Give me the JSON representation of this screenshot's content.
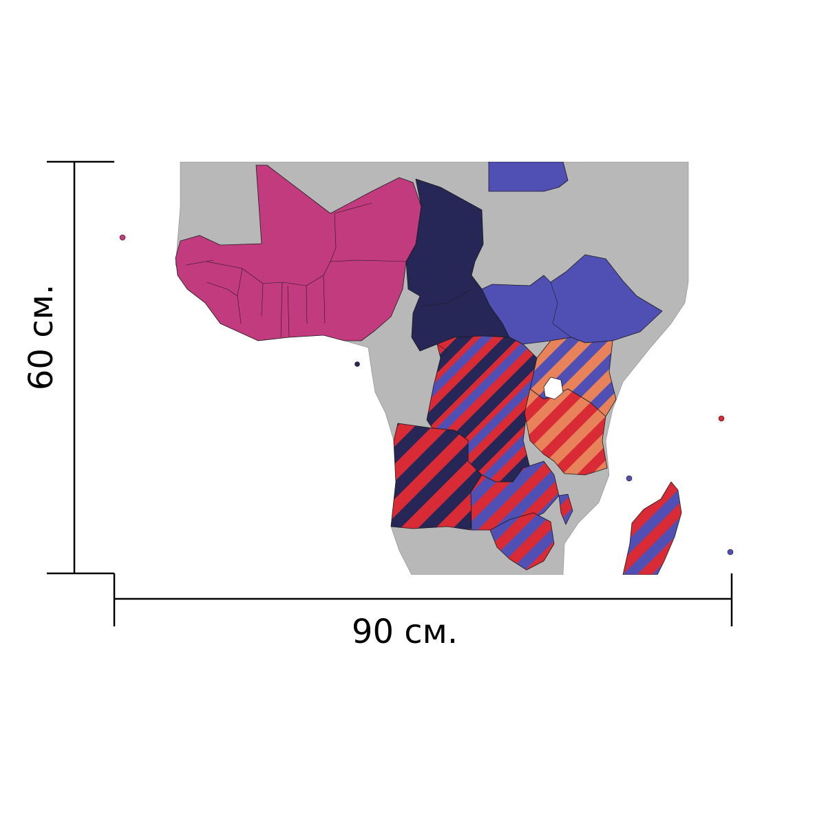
{
  "dimensions": {
    "width_label": "90 см.",
    "height_label": "60 см."
  },
  "colors": {
    "background": "#ffffff",
    "land_other": "#b8b8b8",
    "country_border": "#1a1a1a",
    "magenta": "#c23b7f",
    "navy": "#272757",
    "blue": "#5050b4",
    "red": "#d92b35",
    "orange": "#e8825a",
    "dimension_line": "#000000"
  }
}
